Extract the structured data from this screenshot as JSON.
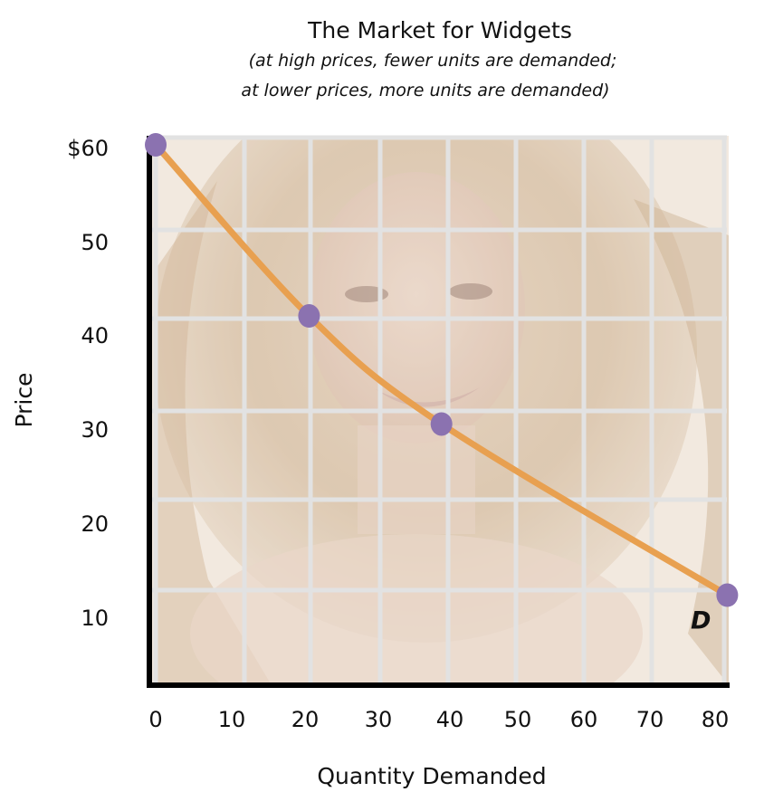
{
  "chart_data": {
    "type": "line",
    "title": "The Market for Widgets",
    "subtitle_lines": [
      "(at high prices, fewer units are demanded;",
      "at lower prices, more units are demanded)"
    ],
    "xlabel": "Quantity Demanded",
    "ylabel": "Price",
    "xlim": [
      0,
      80
    ],
    "ylim": [
      0,
      60
    ],
    "x_ticks": [
      0,
      10,
      20,
      30,
      40,
      50,
      60,
      70,
      80
    ],
    "x_tick_labels": [
      "0",
      "10",
      "20",
      "30",
      "40",
      "50",
      "60",
      "70",
      "80"
    ],
    "y_ticks": [
      10,
      20,
      30,
      40,
      50,
      60
    ],
    "y_tick_labels": [
      "10",
      "20",
      "30",
      "40",
      "50",
      "$60"
    ],
    "grid": true,
    "series": [
      {
        "name": "D",
        "color": "#e8a050",
        "marker_color": "#8b72b0",
        "x": [
          0,
          22,
          41,
          82
        ],
        "y": [
          60,
          41,
          29,
          10
        ]
      }
    ],
    "background": "faded photograph of a smiling woman with long wavy hair"
  }
}
